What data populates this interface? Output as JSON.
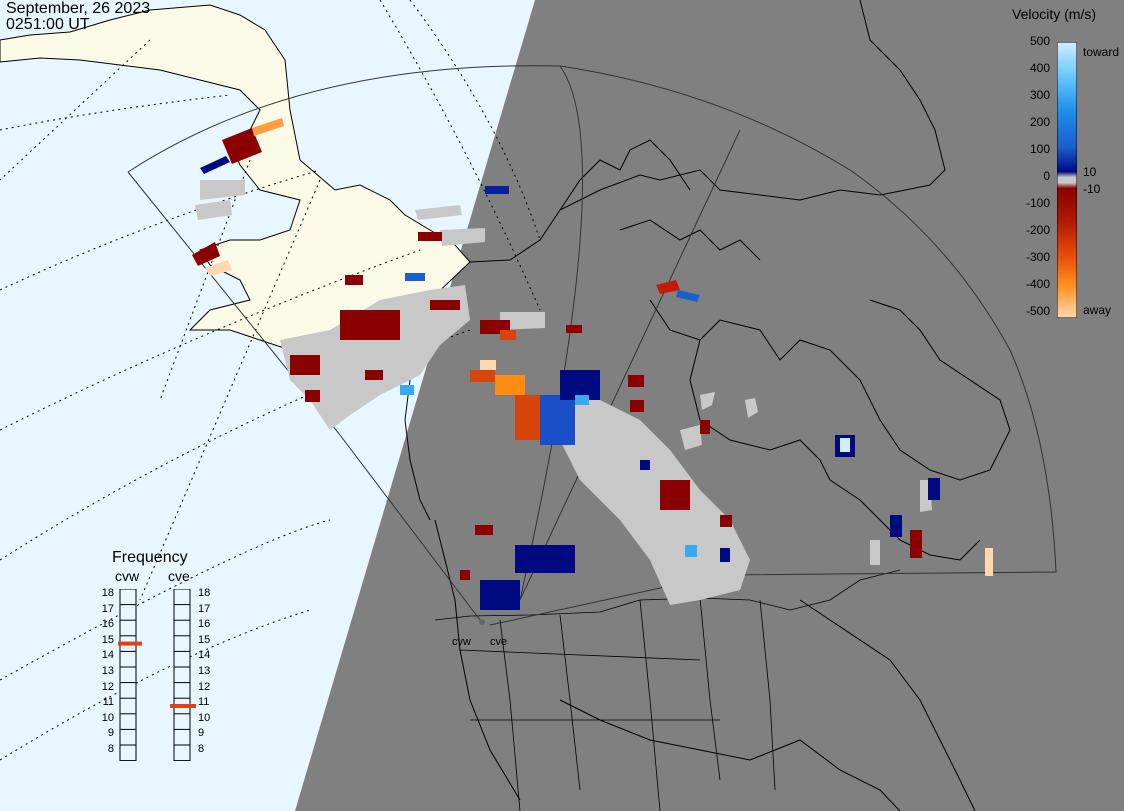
{
  "header": {
    "date": "September, 26 2023",
    "time": "0251:00 UT"
  },
  "colorbar": {
    "title": "Velocity (m/s)",
    "ticks": [
      "500",
      "400",
      "300",
      "200",
      "100",
      "0",
      "-100",
      "-200",
      "-300",
      "-400",
      "-500"
    ],
    "toward_label": "toward",
    "away_label": "away",
    "small_pos_label": "10",
    "small_neg_label": "-10",
    "range": [
      -500,
      500
    ],
    "colors": {
      "toward_max": "#cfeeff",
      "toward_high": "#39a8ef",
      "toward_mid": "#1a5fd0",
      "toward_low": "#000a80",
      "zero": "#c8c8c8",
      "away_low": "#8b0000",
      "away_mid": "#d8450a",
      "away_high": "#ff8c10",
      "away_max": "#ffd8b0"
    }
  },
  "frequency_panel": {
    "title": "Frequency",
    "radars": [
      {
        "name": "cvw",
        "frequency_mhz": 15
      },
      {
        "name": "cve",
        "frequency_mhz": 11
      }
    ],
    "scale": [
      "18",
      "17",
      "16",
      "15",
      "14",
      "13",
      "12",
      "11",
      "10",
      "9",
      "8"
    ],
    "range": [
      8,
      18
    ],
    "marker_color": "#e0401a"
  },
  "sites": {
    "cvw_label": "cvw",
    "cve_label": "cve"
  },
  "map_colors": {
    "ocean_day": "#e8f6ff",
    "land_day": "#fafae6",
    "night": "#808080",
    "ground_scatter": "#c8c8c8"
  }
}
